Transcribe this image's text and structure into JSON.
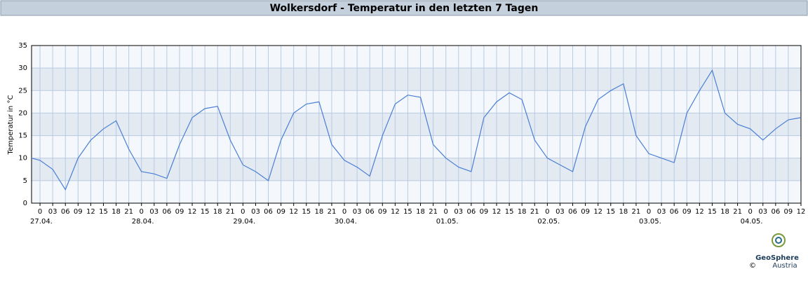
{
  "chart_data": {
    "type": "line",
    "title": "Wolkersdorf - Temperatur in den letzten 7 Tagen",
    "ylabel": "Temperatur in °C",
    "x": [
      -2,
      0,
      3,
      6,
      9,
      12,
      15,
      18,
      21,
      24,
      27,
      30,
      33,
      36,
      39,
      42,
      45,
      48,
      51,
      54,
      57,
      60,
      63,
      66,
      69,
      72,
      75,
      78,
      81,
      84,
      87,
      90,
      93,
      96,
      99,
      102,
      105,
      108,
      111,
      114,
      117,
      120,
      123,
      126,
      129,
      132,
      135,
      138,
      141,
      144,
      147,
      150,
      153,
      156,
      159,
      162,
      165,
      168,
      171,
      174,
      177,
      180
    ],
    "series": [
      {
        "name": "Temperatur",
        "color": "#4a7fd4",
        "values": [
          10,
          9.5,
          7.5,
          3,
          10,
          14,
          16.5,
          18.3,
          12,
          7,
          6.5,
          5.5,
          13,
          19,
          21,
          21.5,
          14,
          8.5,
          7,
          5,
          14,
          20,
          22,
          22.5,
          13,
          9.5,
          8,
          6,
          15,
          22,
          24,
          23.5,
          13,
          10,
          8,
          7,
          19,
          22.5,
          24.5,
          23,
          14,
          10,
          8.5,
          7,
          17,
          23,
          25,
          26.5,
          15,
          11,
          10,
          9,
          20,
          25,
          29.5,
          20,
          17.5,
          16.5,
          14,
          16.5,
          18.5,
          19
        ]
      }
    ],
    "xlim": [
      -2,
      180
    ],
    "xticks": [
      {
        "value": 0,
        "label": "0"
      },
      {
        "value": 3,
        "label": "03"
      },
      {
        "value": 6,
        "label": "06"
      },
      {
        "value": 9,
        "label": "09"
      },
      {
        "value": 12,
        "label": "12"
      },
      {
        "value": 15,
        "label": "15"
      },
      {
        "value": 18,
        "label": "18"
      },
      {
        "value": 21,
        "label": "21"
      },
      {
        "value": 24,
        "label": "0"
      },
      {
        "value": 27,
        "label": "03"
      },
      {
        "value": 30,
        "label": "06"
      },
      {
        "value": 33,
        "label": "09"
      },
      {
        "value": 36,
        "label": "12"
      },
      {
        "value": 39,
        "label": "15"
      },
      {
        "value": 42,
        "label": "18"
      },
      {
        "value": 45,
        "label": "21"
      },
      {
        "value": 48,
        "label": "0"
      },
      {
        "value": 51,
        "label": "03"
      },
      {
        "value": 54,
        "label": "06"
      },
      {
        "value": 57,
        "label": "09"
      },
      {
        "value": 60,
        "label": "12"
      },
      {
        "value": 63,
        "label": "15"
      },
      {
        "value": 66,
        "label": "18"
      },
      {
        "value": 69,
        "label": "21"
      },
      {
        "value": 72,
        "label": "0"
      },
      {
        "value": 75,
        "label": "03"
      },
      {
        "value": 78,
        "label": "06"
      },
      {
        "value": 81,
        "label": "09"
      },
      {
        "value": 84,
        "label": "12"
      },
      {
        "value": 87,
        "label": "15"
      },
      {
        "value": 90,
        "label": "18"
      },
      {
        "value": 93,
        "label": "21"
      },
      {
        "value": 96,
        "label": "0"
      },
      {
        "value": 99,
        "label": "03"
      },
      {
        "value": 102,
        "label": "06"
      },
      {
        "value": 105,
        "label": "09"
      },
      {
        "value": 108,
        "label": "12"
      },
      {
        "value": 111,
        "label": "15"
      },
      {
        "value": 114,
        "label": "18"
      },
      {
        "value": 117,
        "label": "21"
      },
      {
        "value": 120,
        "label": "0"
      },
      {
        "value": 123,
        "label": "03"
      },
      {
        "value": 126,
        "label": "06"
      },
      {
        "value": 129,
        "label": "09"
      },
      {
        "value": 132,
        "label": "12"
      },
      {
        "value": 135,
        "label": "15"
      },
      {
        "value": 138,
        "label": "18"
      },
      {
        "value": 141,
        "label": "21"
      },
      {
        "value": 144,
        "label": "0"
      },
      {
        "value": 147,
        "label": "03"
      },
      {
        "value": 150,
        "label": "06"
      },
      {
        "value": 153,
        "label": "09"
      },
      {
        "value": 156,
        "label": "12"
      },
      {
        "value": 159,
        "label": "15"
      },
      {
        "value": 162,
        "label": "18"
      },
      {
        "value": 165,
        "label": "21"
      },
      {
        "value": 168,
        "label": "0"
      },
      {
        "value": 171,
        "label": "03"
      },
      {
        "value": 174,
        "label": "06"
      },
      {
        "value": 177,
        "label": "09"
      },
      {
        "value": 180,
        "label": "12"
      }
    ],
    "xdate_ticks": [
      {
        "value": 0,
        "label": "27.04."
      },
      {
        "value": 24,
        "label": "28.04."
      },
      {
        "value": 48,
        "label": "29.04."
      },
      {
        "value": 72,
        "label": "30.04."
      },
      {
        "value": 96,
        "label": "01.05."
      },
      {
        "value": 120,
        "label": "02.05."
      },
      {
        "value": 144,
        "label": "03.05."
      },
      {
        "value": 168,
        "label": "04.05."
      }
    ],
    "ylim": [
      0,
      35
    ],
    "yticks": [
      0,
      5,
      10,
      15,
      20,
      25,
      30,
      35
    ],
    "grid": true,
    "band_colors": [
      "#f4f7fb",
      "#e4eaf2"
    ]
  },
  "logo": {
    "name": "GeoSphere",
    "sub": "Austria",
    "copyright": "©"
  }
}
